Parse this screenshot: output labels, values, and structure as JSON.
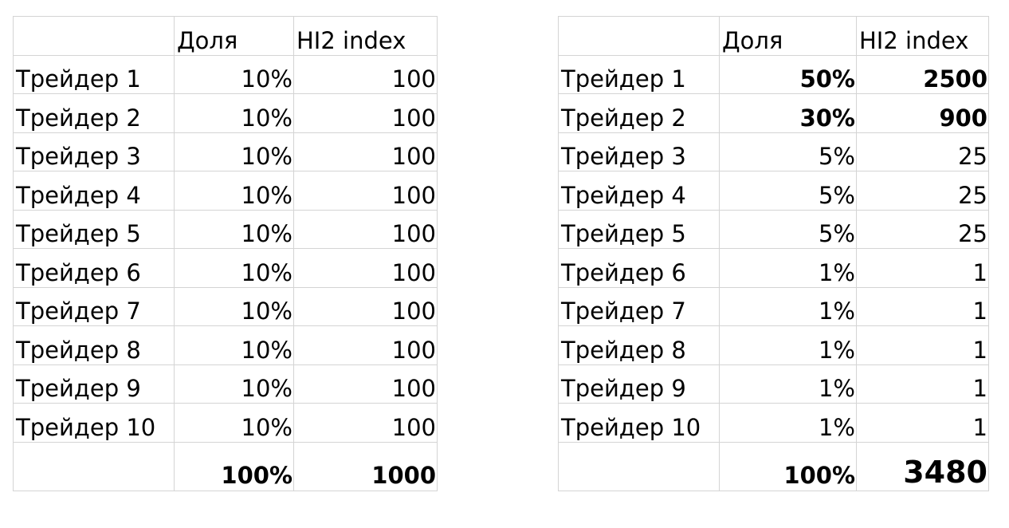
{
  "left_table": {
    "header": {
      "col1": "",
      "col2": "Доля",
      "col3": "HI2 index"
    },
    "rows": [
      {
        "name": "Трейдер 1",
        "share": "10%",
        "index": "100"
      },
      {
        "name": "Трейдер 2",
        "share": "10%",
        "index": "100"
      },
      {
        "name": "Трейдер 3",
        "share": "10%",
        "index": "100"
      },
      {
        "name": "Трейдер 4",
        "share": "10%",
        "index": "100"
      },
      {
        "name": "Трейдер 5",
        "share": "10%",
        "index": "100"
      },
      {
        "name": "Трейдер 6",
        "share": "10%",
        "index": "100"
      },
      {
        "name": "Трейдер 7",
        "share": "10%",
        "index": "100"
      },
      {
        "name": "Трейдер 8",
        "share": "10%",
        "index": "100"
      },
      {
        "name": "Трейдер 9",
        "share": "10%",
        "index": "100"
      },
      {
        "name": "Трейдер 10",
        "share": "10%",
        "index": "100"
      }
    ],
    "total": {
      "share": "100%",
      "index": "1000"
    }
  },
  "right_table": {
    "header": {
      "col1": "",
      "col2": "Доля",
      "col3": "HI2 index"
    },
    "rows": [
      {
        "name": "Трейдер 1",
        "share": "50%",
        "index": "2500",
        "bold": true
      },
      {
        "name": "Трейдер 2",
        "share": "30%",
        "index": "900",
        "bold": true
      },
      {
        "name": "Трейдер 3",
        "share": "5%",
        "index": "25",
        "bold": false
      },
      {
        "name": "Трейдер 4",
        "share": "5%",
        "index": "25",
        "bold": false
      },
      {
        "name": "Трейдер 5",
        "share": "5%",
        "index": "25",
        "bold": false
      },
      {
        "name": "Трейдер 6",
        "share": "1%",
        "index": "1",
        "bold": false
      },
      {
        "name": "Трейдер 7",
        "share": "1%",
        "index": "1",
        "bold": false
      },
      {
        "name": "Трейдер 8",
        "share": "1%",
        "index": "1",
        "bold": false
      },
      {
        "name": "Трейдер 9",
        "share": "1%",
        "index": "1",
        "bold": false
      },
      {
        "name": "Трейдер 10",
        "share": "1%",
        "index": "1",
        "bold": false
      }
    ],
    "total": {
      "share": "100%",
      "index": "3480"
    }
  },
  "colors": {
    "gridline": "#d4d4d4",
    "text": "#000000",
    "background": "#ffffff"
  }
}
